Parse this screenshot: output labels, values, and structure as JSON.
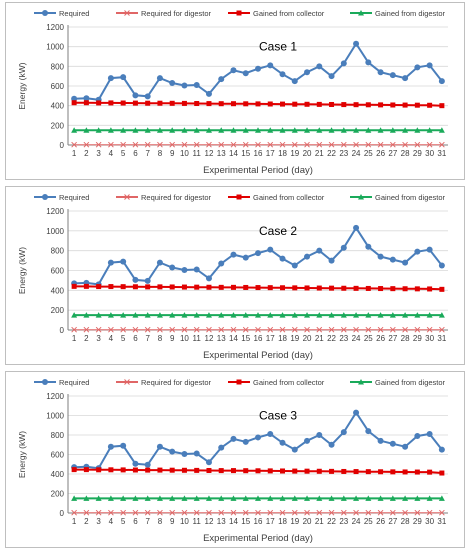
{
  "chart_data": [
    {
      "type": "line",
      "title": "Case 1",
      "xlabel": "Experimental Period (day)",
      "ylabel": "Energy (kW)",
      "x": [
        1,
        2,
        3,
        4,
        5,
        6,
        7,
        8,
        9,
        10,
        11,
        12,
        13,
        14,
        15,
        16,
        17,
        18,
        19,
        20,
        21,
        22,
        23,
        24,
        25,
        26,
        27,
        28,
        29,
        30,
        31
      ],
      "ylim": [
        0,
        1200
      ],
      "yticks": [
        0,
        200,
        400,
        600,
        800,
        1000,
        1200
      ],
      "legend_position": "top",
      "grid": "horizontal",
      "series": [
        {
          "name": "Required",
          "color": "#4a7ebb",
          "marker": "circle",
          "values": [
            470,
            475,
            460,
            680,
            690,
            505,
            495,
            680,
            630,
            605,
            610,
            520,
            670,
            760,
            730,
            775,
            810,
            720,
            650,
            740,
            800,
            700,
            830,
            1030,
            840,
            740,
            710,
            680,
            790,
            810,
            650
          ]
        },
        {
          "name": "Required for digestor",
          "color": "#e06666",
          "marker": "x",
          "values": [
            3,
            3,
            3,
            3,
            3,
            3,
            3,
            3,
            3,
            3,
            3,
            3,
            3,
            3,
            3,
            3,
            3,
            3,
            3,
            3,
            3,
            3,
            3,
            3,
            3,
            3,
            3,
            3,
            3,
            3,
            3
          ]
        },
        {
          "name": "Gained from collector",
          "color": "#e00000",
          "marker": "square",
          "values": [
            430,
            430,
            428,
            428,
            427,
            426,
            425,
            425,
            424,
            423,
            422,
            421,
            420,
            420,
            419,
            418,
            417,
            416,
            415,
            414,
            413,
            412,
            411,
            410,
            409,
            408,
            407,
            406,
            405,
            404,
            400
          ]
        },
        {
          "name": "Gained from digestor",
          "color": "#1aaa5a",
          "marker": "triangle",
          "values": [
            150,
            150,
            150,
            150,
            150,
            150,
            150,
            150,
            150,
            150,
            150,
            150,
            150,
            150,
            150,
            150,
            150,
            150,
            150,
            150,
            150,
            150,
            150,
            150,
            150,
            150,
            150,
            150,
            150,
            150,
            150
          ]
        }
      ]
    },
    {
      "type": "line",
      "title": "Case 2",
      "xlabel": "Experimental Period (day)",
      "ylabel": "Energy (kW)",
      "x": [
        1,
        2,
        3,
        4,
        5,
        6,
        7,
        8,
        9,
        10,
        11,
        12,
        13,
        14,
        15,
        16,
        17,
        18,
        19,
        20,
        21,
        22,
        23,
        24,
        25,
        26,
        27,
        28,
        29,
        30,
        31
      ],
      "ylim": [
        0,
        1200
      ],
      "yticks": [
        0,
        200,
        400,
        600,
        800,
        1000,
        1200
      ],
      "legend_position": "top",
      "grid": "horizontal",
      "series": [
        {
          "name": "Required",
          "color": "#4a7ebb",
          "marker": "circle",
          "values": [
            470,
            475,
            460,
            680,
            690,
            505,
            495,
            680,
            630,
            605,
            610,
            520,
            670,
            760,
            730,
            775,
            810,
            720,
            650,
            740,
            800,
            700,
            830,
            1030,
            840,
            740,
            710,
            680,
            790,
            810,
            650
          ]
        },
        {
          "name": "Required for digestor",
          "color": "#e06666",
          "marker": "x",
          "values": [
            3,
            3,
            3,
            3,
            3,
            3,
            3,
            3,
            3,
            3,
            3,
            3,
            3,
            3,
            3,
            3,
            3,
            3,
            3,
            3,
            3,
            3,
            3,
            3,
            3,
            3,
            3,
            3,
            3,
            3,
            3
          ]
        },
        {
          "name": "Gained from collector",
          "color": "#e00000",
          "marker": "square",
          "values": [
            440,
            440,
            438,
            438,
            437,
            436,
            435,
            435,
            434,
            433,
            432,
            431,
            430,
            430,
            429,
            428,
            427,
            426,
            425,
            424,
            423,
            422,
            421,
            420,
            419,
            418,
            417,
            416,
            415,
            414,
            410
          ]
        },
        {
          "name": "Gained from digestor",
          "color": "#1aaa5a",
          "marker": "triangle",
          "values": [
            150,
            150,
            150,
            150,
            150,
            150,
            150,
            150,
            150,
            150,
            150,
            150,
            150,
            150,
            150,
            150,
            150,
            150,
            150,
            150,
            150,
            150,
            150,
            150,
            150,
            150,
            150,
            150,
            150,
            150,
            150
          ]
        }
      ]
    },
    {
      "type": "line",
      "title": "Case 3",
      "xlabel": "Experimental Period (day)",
      "ylabel": "Energy (kW)",
      "x": [
        1,
        2,
        3,
        4,
        5,
        6,
        7,
        8,
        9,
        10,
        11,
        12,
        13,
        14,
        15,
        16,
        17,
        18,
        19,
        20,
        21,
        22,
        23,
        24,
        25,
        26,
        27,
        28,
        29,
        30,
        31
      ],
      "ylim": [
        0,
        1200
      ],
      "yticks": [
        0,
        200,
        400,
        600,
        800,
        1000,
        1200
      ],
      "legend_position": "top",
      "grid": "horizontal",
      "series": [
        {
          "name": "Required",
          "color": "#4a7ebb",
          "marker": "circle",
          "values": [
            470,
            475,
            460,
            680,
            690,
            505,
            495,
            680,
            630,
            605,
            610,
            520,
            670,
            760,
            730,
            775,
            810,
            720,
            650,
            740,
            800,
            700,
            830,
            1030,
            840,
            740,
            710,
            680,
            790,
            810,
            650
          ]
        },
        {
          "name": "Required for digestor",
          "color": "#e06666",
          "marker": "x",
          "values": [
            3,
            3,
            3,
            3,
            3,
            3,
            3,
            3,
            3,
            3,
            3,
            3,
            3,
            3,
            3,
            3,
            3,
            3,
            3,
            3,
            3,
            3,
            3,
            3,
            3,
            3,
            3,
            3,
            3,
            3,
            3
          ]
        },
        {
          "name": "Gained from collector",
          "color": "#e00000",
          "marker": "square",
          "values": [
            445,
            445,
            443,
            443,
            442,
            441,
            440,
            440,
            439,
            438,
            437,
            436,
            435,
            435,
            434,
            433,
            432,
            431,
            430,
            429,
            428,
            427,
            426,
            425,
            424,
            423,
            422,
            421,
            420,
            419,
            410
          ]
        },
        {
          "name": "Gained from digestor",
          "color": "#1aaa5a",
          "marker": "triangle",
          "values": [
            150,
            150,
            150,
            150,
            150,
            150,
            150,
            150,
            150,
            150,
            150,
            150,
            150,
            150,
            150,
            150,
            150,
            150,
            150,
            150,
            150,
            150,
            150,
            150,
            150,
            150,
            150,
            150,
            150,
            150,
            150
          ]
        }
      ]
    }
  ]
}
